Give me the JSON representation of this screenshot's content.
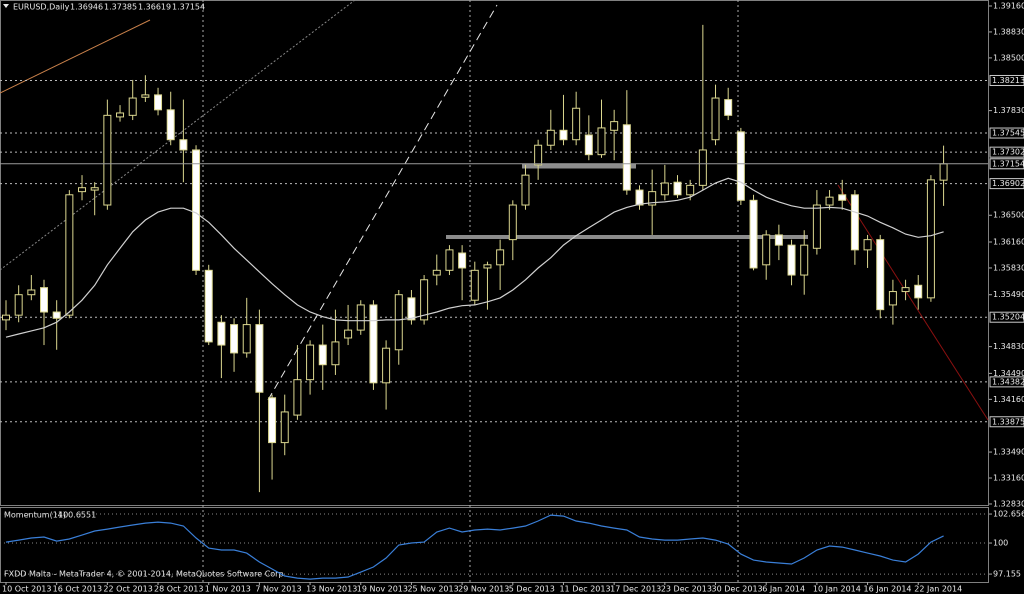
{
  "chart_data": [
    {
      "type": "candlestick",
      "title": "EURUSD,Daily",
      "categories": [
        "10 Oct 2013",
        null,
        null,
        null,
        "16 Oct 2013",
        null,
        null,
        null,
        "22 Oct 2013",
        null,
        null,
        null,
        "28 Oct 2013",
        null,
        null,
        null,
        "1 Nov 2013",
        null,
        null,
        null,
        "7 Nov 2013",
        null,
        null,
        null,
        "13 Nov 2013",
        null,
        null,
        null,
        "19 Nov 2013",
        null,
        null,
        null,
        "25 Nov 2013",
        null,
        null,
        null,
        "29 Nov 2013",
        null,
        null,
        null,
        "5 Dec 2013",
        null,
        null,
        null,
        "11 Dec 2013",
        null,
        null,
        null,
        "17 Dec 2013",
        null,
        null,
        null,
        "23 Dec 2013",
        null,
        null,
        null,
        "30 Dec 2013",
        null,
        null,
        null,
        "6 Jan 2014",
        null,
        null,
        null,
        "10 Jan 2014",
        null,
        null,
        null,
        "16 Jan 2014",
        null,
        null,
        null,
        "22 Jan 2014",
        null,
        null
      ],
      "open": [
        1.3517,
        1.3523,
        1.3549,
        1.3558,
        1.3527,
        1.3523,
        1.368,
        1.3682,
        1.3663,
        1.3775,
        1.3777,
        1.38,
        1.3803,
        1.3784,
        1.3746,
        1.3733,
        1.358,
        1.3514,
        1.3511,
        1.3475,
        1.3511,
        1.3418,
        1.3361,
        1.3396,
        1.3441,
        1.3485,
        1.346,
        1.3494,
        1.3504,
        1.3536,
        1.3437,
        1.3479,
        1.3545,
        1.3517,
        1.3574,
        1.358,
        1.3602,
        1.3542,
        1.3583,
        1.3587,
        1.3619,
        1.3663,
        1.3714,
        1.3739,
        1.3758,
        1.3746,
        1.3752,
        1.3727,
        1.3758,
        1.3765,
        1.3682,
        1.3663,
        1.3676,
        1.3692,
        1.3676,
        1.3688,
        1.3746,
        1.3797,
        1.3756,
        1.3669,
        1.3587,
        1.3625,
        1.3612,
        1.3574,
        1.3608,
        1.3663,
        1.3676,
        1.3676,
        1.3606,
        1.3619,
        1.3536,
        1.3553,
        1.3561,
        1.3545,
        1.36946
      ],
      "high": [
        1.3542,
        1.3561,
        1.3574,
        1.3568,
        1.3542,
        1.3682,
        1.3701,
        1.3692,
        1.3797,
        1.379,
        1.3822,
        1.3828,
        1.3812,
        1.3807,
        1.3797,
        1.3739,
        1.3587,
        1.3523,
        1.3519,
        1.3545,
        1.353,
        1.3422,
        1.3422,
        1.3485,
        1.3491,
        1.3511,
        1.353,
        1.3536,
        1.3542,
        1.3542,
        1.3491,
        1.3555,
        1.3555,
        1.3574,
        1.36,
        1.3612,
        1.3612,
        1.3591,
        1.3591,
        1.3619,
        1.3669,
        1.3714,
        1.3746,
        1.3784,
        1.3803,
        1.3807,
        1.3777,
        1.3797,
        1.3784,
        1.3809,
        1.3688,
        1.3708,
        1.3714,
        1.3701,
        1.3695,
        1.3892,
        1.3816,
        1.3812,
        1.3761,
        1.3676,
        1.3631,
        1.3638,
        1.3619,
        1.3631,
        1.3682,
        1.3682,
        1.3695,
        1.3682,
        1.3625,
        1.3625,
        1.3568,
        1.3568,
        1.3574,
        1.3701,
        1.37385
      ],
      "low": [
        1.3504,
        1.3514,
        1.3542,
        1.3485,
        1.3479,
        1.3519,
        1.3669,
        1.365,
        1.3657,
        1.3769,
        1.3771,
        1.3794,
        1.3777,
        1.3739,
        1.3692,
        1.3574,
        1.3485,
        1.3443,
        1.3451,
        1.3469,
        1.3298,
        1.3314,
        1.3345,
        1.339,
        1.3422,
        1.3428,
        1.3447,
        1.3485,
        1.3498,
        1.3428,
        1.3403,
        1.346,
        1.3511,
        1.3511,
        1.3561,
        1.3574,
        1.3542,
        1.3536,
        1.353,
        1.3555,
        1.3593,
        1.3657,
        1.3695,
        1.3733,
        1.3739,
        1.3739,
        1.372,
        1.3723,
        1.372,
        1.3676,
        1.3657,
        1.3625,
        1.3669,
        1.3672,
        1.3669,
        1.3682,
        1.3739,
        1.3771,
        1.3663,
        1.358,
        1.3568,
        1.3593,
        1.3561,
        1.3549,
        1.36,
        1.3657,
        1.3657,
        1.3587,
        1.3583,
        1.3519,
        1.3511,
        1.3542,
        1.353,
        1.354,
        1.36619
      ],
      "close": [
        1.3523,
        1.3549,
        1.3555,
        1.3527,
        1.3519,
        1.3676,
        1.3685,
        1.3685,
        1.3777,
        1.378,
        1.3799,
        1.3803,
        1.3784,
        1.3746,
        1.3733,
        1.358,
        1.3489,
        1.3485,
        1.3475,
        1.3511,
        1.3425,
        1.3361,
        1.34,
        1.3441,
        1.3485,
        1.346,
        1.3489,
        1.3504,
        1.3536,
        1.3437,
        1.3481,
        1.3549,
        1.3517,
        1.3568,
        1.358,
        1.3606,
        1.3583,
        1.358,
        1.3587,
        1.3606,
        1.3663,
        1.3701,
        1.3739,
        1.3758,
        1.3746,
        1.3786,
        1.3727,
        1.3761,
        1.3769,
        1.3682,
        1.3663,
        1.368,
        1.3691,
        1.3676,
        1.3688,
        1.3733,
        1.3799,
        1.3777,
        1.3669,
        1.3583,
        1.3625,
        1.3612,
        1.3574,
        1.3612,
        1.3663,
        1.3673,
        1.3669,
        1.3606,
        1.3619,
        1.353,
        1.3553,
        1.3558,
        1.3545,
        1.3695,
        1.37154
      ],
      "up_color": "#000000",
      "down_color": "#ffffff",
      "outline_color": "#dcd890",
      "series": [
        {
          "color": "#d0d0d0",
          "values": [
            1.3495,
            1.3499,
            1.3503,
            1.3507,
            1.3514,
            1.3527,
            1.3542,
            1.3561,
            1.3587,
            1.3608,
            1.3629,
            1.3644,
            1.3654,
            1.3659,
            1.3659,
            1.3653,
            1.3641,
            1.3625,
            1.3608,
            1.3593,
            1.3578,
            1.3563,
            1.3549,
            1.3536,
            1.3527,
            1.3521,
            1.3517,
            1.3516,
            1.3516,
            1.3516,
            1.3517,
            1.3517,
            1.3519,
            1.3523,
            1.3527,
            1.3532,
            1.3535,
            1.3536,
            1.354,
            1.3545,
            1.3555,
            1.3568,
            1.3583,
            1.3596,
            1.3612,
            1.3624,
            1.3634,
            1.3644,
            1.3654,
            1.366,
            1.3664,
            1.3666,
            1.3667,
            1.3669,
            1.3673,
            1.3682,
            1.3691,
            1.3697,
            1.3692,
            1.3682,
            1.3673,
            1.3667,
            1.3662,
            1.3659,
            1.3659,
            1.366,
            1.3659,
            1.3654,
            1.3649,
            1.3641,
            1.3634,
            1.3626,
            1.3622,
            1.3624,
            1.3629
          ]
        }
      ],
      "levels": [
        1.38213,
        1.37545,
        1.37302,
        1.36902,
        1.35204,
        1.34382,
        1.33875
      ],
      "ylim": [
        1.32817,
        1.39236
      ],
      "yticks": [
        {
          "value": 1.3916,
          "label": "1.39160"
        },
        {
          "value": 1.3883,
          "label": "1.38830"
        },
        {
          "value": 1.385,
          "label": "1.38500"
        },
        {
          "value": 1.3783,
          "label": "1.37830"
        },
        {
          "value": 1.365,
          "label": "1.36500"
        },
        {
          "value": 1.3616,
          "label": "1.36160"
        },
        {
          "value": 1.3583,
          "label": "1.35830"
        },
        {
          "value": 1.3549,
          "label": "1.35490"
        },
        {
          "value": 1.3483,
          "label": "1.34830"
        },
        {
          "value": 1.3449,
          "label": "1.34490"
        },
        {
          "value": 1.3416,
          "label": "1.34160"
        },
        {
          "value": 1.3349,
          "label": "1.33490"
        },
        {
          "value": 1.3316,
          "label": "1.33160"
        },
        {
          "value": 1.3283,
          "label": "1.32830"
        }
      ]
    },
    {
      "type": "line",
      "title": "Momentum(14)",
      "series": [
        {
          "color": "#3a7fd8",
          "values": [
            100.09,
            100.27,
            100.46,
            100.55,
            100.18,
            100.37,
            100.73,
            101.1,
            101.28,
            101.47,
            101.65,
            101.83,
            101.92,
            101.83,
            101.56,
            100.46,
            99.54,
            99.36,
            99.36,
            99.08,
            98.26,
            97.62,
            96.98,
            96.79,
            96.7,
            96.79,
            96.79,
            96.89,
            97.34,
            97.8,
            98.63,
            99.82,
            100,
            100.09,
            101.01,
            101.37,
            101.01,
            101.19,
            101.28,
            101.19,
            101.37,
            101.56,
            102.02,
            102.56,
            102.47,
            102.02,
            101.83,
            101.56,
            101.37,
            101.19,
            100.55,
            100.37,
            100.27,
            100.27,
            100.37,
            100.46,
            100.27,
            99.91,
            98.99,
            98.44,
            98.26,
            98.17,
            98.08,
            98.63,
            99.36,
            99.73,
            99.63,
            99.36,
            99.08,
            98.81,
            98.44,
            98.26,
            98.99,
            100.09,
            100.6551
          ]
        }
      ],
      "ylim": [
        96.43,
        103.21
      ],
      "yticks": [
        102.6561,
        100,
        97.155
      ]
    }
  ],
  "footer": "FXDD Malta - MetaTrader 4, © 2001-2014, MetaQuotes Software Corp."
}
